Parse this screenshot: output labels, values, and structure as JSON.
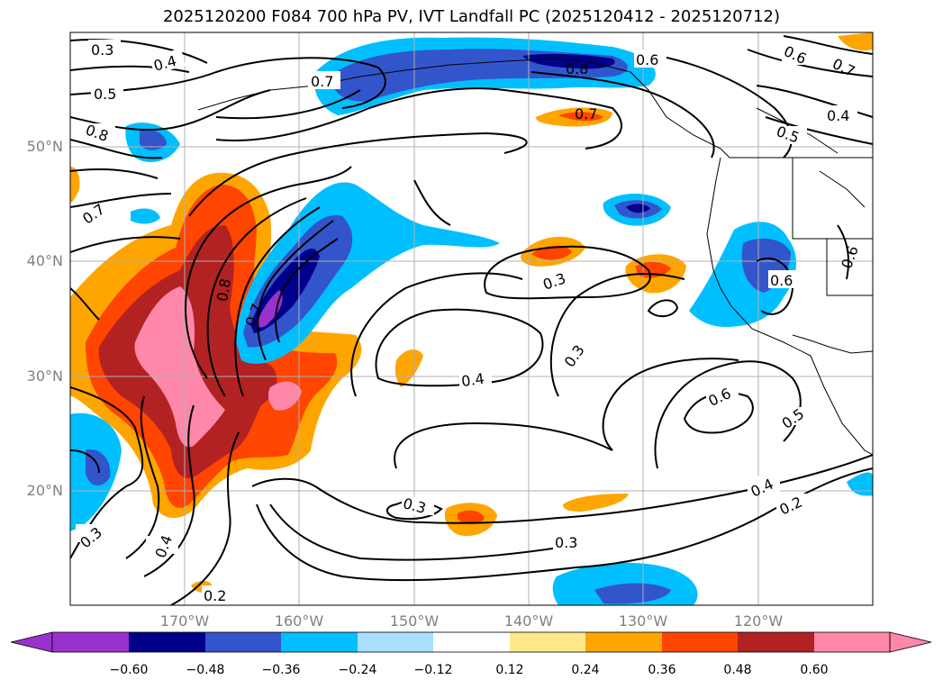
{
  "title": "2025120200 F084 700 hPa PV, IVT Landfall PC (2025120412 - 2025120712)",
  "latitude_labels": [
    "50°N",
    "40°N",
    "30°N",
    "20°N"
  ],
  "longitude_labels": [
    "170°W",
    "160°W",
    "150°W",
    "140°W",
    "130°W",
    "120°W"
  ],
  "colorbar": {
    "ticks": [
      "−0.60",
      "−0.48",
      "−0.36",
      "−0.24",
      "−0.12",
      "0.12",
      "0.24",
      "0.36",
      "0.48",
      "0.60"
    ],
    "colors": [
      "#9932cc",
      "#00008b",
      "#3355cc",
      "#00bfff",
      "#aadfff",
      "#ffffff",
      "#ffe88a",
      "#ffa500",
      "#ff4500",
      "#b22222",
      "#ff88aa"
    ]
  },
  "contour_labels": [
    "0.3",
    "0.4",
    "0.5",
    "0.8",
    "0.7",
    "0.7",
    "0.8",
    "0.7",
    "0.8",
    "0.6",
    "0.6",
    "0.7",
    "0.7",
    "0.4",
    "0.5",
    "0.3",
    "0.3",
    "0.4",
    "0.6",
    "0.5",
    "0.6",
    "0.6",
    "0.4",
    "0.2",
    "0.3",
    "0.3",
    "0.3",
    "0.4",
    "0.2"
  ]
}
